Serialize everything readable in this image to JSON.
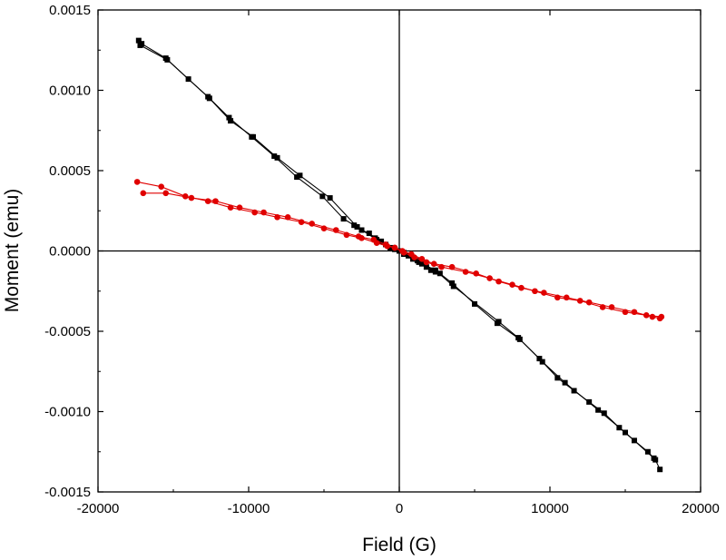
{
  "chart_data": {
    "type": "scatter",
    "xlabel": "Field (G)",
    "ylabel": "Moment (emu)",
    "xlim": [
      -20000,
      20000
    ],
    "ylim": [
      -0.0015,
      0.0015
    ],
    "xticks": [
      -20000,
      -10000,
      0,
      10000,
      20000
    ],
    "xtick_labels": [
      "-20000",
      "-10000",
      "0",
      "10000",
      "20000"
    ],
    "yticks": [
      0.0015,
      0.001,
      0.0005,
      0,
      -0.0005,
      -0.001,
      -0.0015
    ],
    "ytick_labels": [
      "0.0015",
      "0.0010",
      "0.0005",
      "0.0000",
      "-0.0005",
      "-0.0010",
      "-0.0015"
    ],
    "zero_lines": true,
    "series": [
      {
        "color": "#000000",
        "marker": "square",
        "x": [
          -17300,
          -17100,
          -15500,
          -14000,
          -12700,
          -11300,
          -9800,
          -8300,
          -6800,
          -5100,
          -3700,
          -3000,
          -2500,
          -2000,
          -1600,
          -1200,
          -900,
          -600,
          -300,
          0,
          300,
          600,
          900,
          1200,
          1500,
          1800,
          2100,
          2400,
          2700,
          3500,
          5000,
          6500,
          8000,
          9300,
          10500,
          11600,
          12600,
          13600,
          14600,
          15600,
          16500,
          17000,
          17300
        ],
        "y": [
          0.00131,
          0.00129,
          0.0012,
          0.00107,
          0.00096,
          0.00083,
          0.00071,
          0.00059,
          0.00046,
          0.00034,
          0.0002,
          0.00016,
          0.00013,
          0.00011,
          8e-05,
          6e-05,
          4e-05,
          2e-05,
          1e-05,
          0.0,
          -2e-05,
          -3e-05,
          -5e-05,
          -6e-05,
          -8e-05,
          -0.0001,
          -0.00012,
          -0.00013,
          -0.00014,
          -0.0002,
          -0.00033,
          -0.00045,
          -0.00055,
          -0.00067,
          -0.00079,
          -0.00087,
          -0.00094,
          -0.00101,
          -0.0011,
          -0.00118,
          -0.00125,
          -0.0013,
          -0.00136
        ]
      },
      {
        "color": "#000000",
        "marker": "square",
        "x": [
          -17200,
          -15400,
          -12600,
          -11200,
          -9700,
          -8100,
          -6600,
          -4600,
          -2800,
          -1500,
          -500,
          300,
          1300,
          2400,
          3600,
          6600,
          7900,
          9500,
          11000,
          13200,
          15000,
          16900
        ],
        "y": [
          0.00128,
          0.00119,
          0.00095,
          0.00081,
          0.00071,
          0.00058,
          0.00047,
          0.00033,
          0.00015,
          7e-05,
          2e-05,
          -1e-05,
          -7e-05,
          -0.00012,
          -0.00022,
          -0.00044,
          -0.00054,
          -0.00069,
          -0.00082,
          -0.00099,
          -0.00113,
          -0.00129
        ]
      },
      {
        "color": "#e00000",
        "marker": "circle",
        "x": [
          -17400,
          -15800,
          -14200,
          -12700,
          -11200,
          -9600,
          -8100,
          -6500,
          -5000,
          -3500,
          -2500,
          -1500,
          -800,
          -300,
          200,
          800,
          1500,
          2300,
          3500,
          5100,
          6600,
          8100,
          9600,
          11100,
          12600,
          14100,
          15600,
          16800,
          17300
        ],
        "y": [
          0.00043,
          0.0004,
          0.00034,
          0.00031,
          0.00027,
          0.00024,
          0.00021,
          0.00018,
          0.00014,
          0.0001,
          8e-05,
          5e-05,
          3e-05,
          2e-05,
          0.0,
          -2e-05,
          -5e-05,
          -8e-05,
          -0.0001,
          -0.00014,
          -0.00019,
          -0.00023,
          -0.00026,
          -0.00029,
          -0.00032,
          -0.00035,
          -0.00038,
          -0.00041,
          -0.00042
        ]
      },
      {
        "color": "#e00000",
        "marker": "circle",
        "x": [
          -17000,
          -15500,
          -13800,
          -12200,
          -10600,
          -9000,
          -7400,
          -5800,
          -4200,
          -2700,
          -1700,
          -900,
          -300,
          300,
          1000,
          1800,
          2800,
          4400,
          6000,
          7500,
          9000,
          10500,
          12000,
          13500,
          15000,
          16400,
          17400
        ],
        "y": [
          0.00036,
          0.00036,
          0.00033,
          0.00031,
          0.00027,
          0.00024,
          0.00021,
          0.00017,
          0.00013,
          9e-05,
          7e-05,
          4e-05,
          2e-05,
          -1e-05,
          -4e-05,
          -7e-05,
          -0.0001,
          -0.00013,
          -0.00017,
          -0.00021,
          -0.00025,
          -0.00029,
          -0.00031,
          -0.00035,
          -0.00038,
          -0.0004,
          -0.00041
        ]
      }
    ]
  }
}
